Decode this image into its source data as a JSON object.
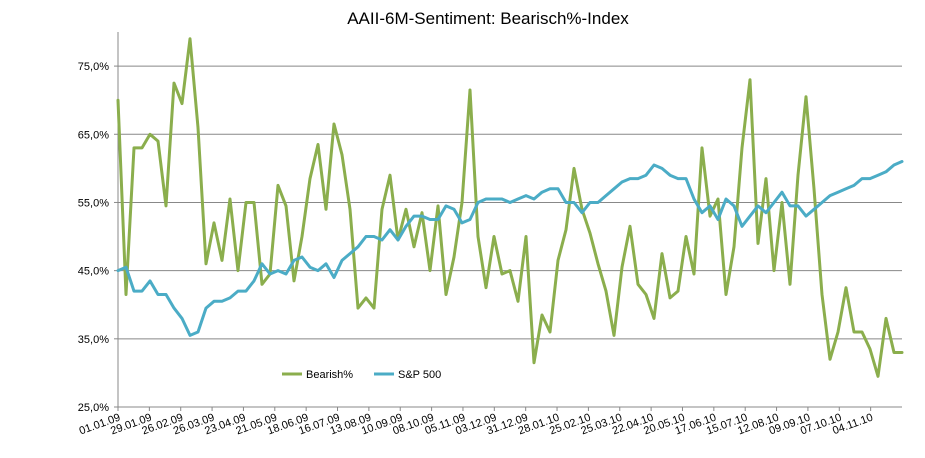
{
  "chart_data": {
    "type": "line",
    "title": "AAII-6M-Sentiment:  Bearisch%-Index",
    "xlabel": "",
    "ylabel": "",
    "ylim": [
      25,
      80
    ],
    "y_ticks": [
      25,
      35,
      45,
      55,
      65,
      75
    ],
    "y_tick_labels": [
      "25,0%",
      "35,0%",
      "45,0%",
      "55,0%",
      "65,0%",
      "75,0%"
    ],
    "x_tick_labels": [
      "01.01.09",
      "29.01.09",
      "26.02.09",
      "26.03.09",
      "23.04.09",
      "21.05.09",
      "18.06.09",
      "16.07.09",
      "13.08.09",
      "10.09.09",
      "08.10.09",
      "05.11.09",
      "03.12.09",
      "31.12.09",
      "28.01.10",
      "25.02.10",
      "25.03.10",
      "22.04.10",
      "20.05.10",
      "17.06.10",
      "15.07.10",
      "12.08.10",
      "09.09.10",
      "07.10.10",
      "04.11.10"
    ],
    "grid": true,
    "legend_position": "bottom-center",
    "x_count": 99,
    "series": [
      {
        "name": "Bearish%",
        "color": "#8BAE4D",
        "values": [
          70.0,
          41.5,
          63.0,
          63.0,
          65.0,
          64.0,
          54.5,
          72.5,
          69.5,
          79.0,
          66.0,
          46.0,
          52.0,
          46.5,
          55.5,
          45.0,
          55.0,
          55.0,
          43.0,
          44.5,
          57.5,
          54.5,
          43.5,
          50.0,
          58.5,
          63.5,
          54.0,
          66.5,
          62.0,
          54.0,
          39.5,
          41.0,
          39.5,
          54.0,
          59.0,
          49.5,
          54.0,
          48.5,
          53.5,
          45.0,
          54.5,
          41.5,
          47.0,
          55.0,
          71.5,
          50.0,
          42.5,
          50.0,
          44.5,
          45.0,
          40.5,
          50.0,
          31.5,
          38.5,
          36.0,
          46.5,
          51.0,
          60.0,
          54.0,
          50.5,
          46.0,
          42.0,
          35.5,
          45.5,
          51.5,
          43.0,
          41.5,
          38.0,
          47.5,
          41.0,
          42.0,
          50.0,
          44.5,
          63.0,
          53.0,
          55.5,
          41.5,
          48.5,
          63.0,
          73.0,
          49.0,
          58.5,
          45.0,
          55.0,
          43.0,
          59.0,
          70.5,
          57.0,
          41.5,
          32.0,
          36.0,
          42.5,
          36.0,
          36.0,
          33.5,
          29.5,
          38.0,
          33.0,
          33.0
        ]
      },
      {
        "name": "S&P 500",
        "color": "#4BACC6",
        "values": [
          45.0,
          45.5,
          42.0,
          42.0,
          43.5,
          41.5,
          41.5,
          39.5,
          38.0,
          35.5,
          36.0,
          39.5,
          40.5,
          40.5,
          41.0,
          42.0,
          42.0,
          43.5,
          46.0,
          44.5,
          45.0,
          44.5,
          46.5,
          47.0,
          45.5,
          45.0,
          46.0,
          44.0,
          46.5,
          47.5,
          48.5,
          50.0,
          50.0,
          49.5,
          51.0,
          49.5,
          51.5,
          53.0,
          53.0,
          52.5,
          52.5,
          54.5,
          54.0,
          52.0,
          52.5,
          55.0,
          55.5,
          55.5,
          55.5,
          55.0,
          55.5,
          56.0,
          55.5,
          56.5,
          57.0,
          57.0,
          55.0,
          55.0,
          53.5,
          55.0,
          55.0,
          56.0,
          57.0,
          58.0,
          58.5,
          58.5,
          59.0,
          60.5,
          60.0,
          59.0,
          58.5,
          58.5,
          55.5,
          53.5,
          54.5,
          52.5,
          55.5,
          54.5,
          51.5,
          53.0,
          54.5,
          53.5,
          55.0,
          56.5,
          54.5,
          54.5,
          53.0,
          54.0,
          55.0,
          56.0,
          56.5,
          57.0,
          57.5,
          58.5,
          58.5,
          59.0,
          59.5,
          60.5,
          61.0
        ]
      }
    ]
  }
}
